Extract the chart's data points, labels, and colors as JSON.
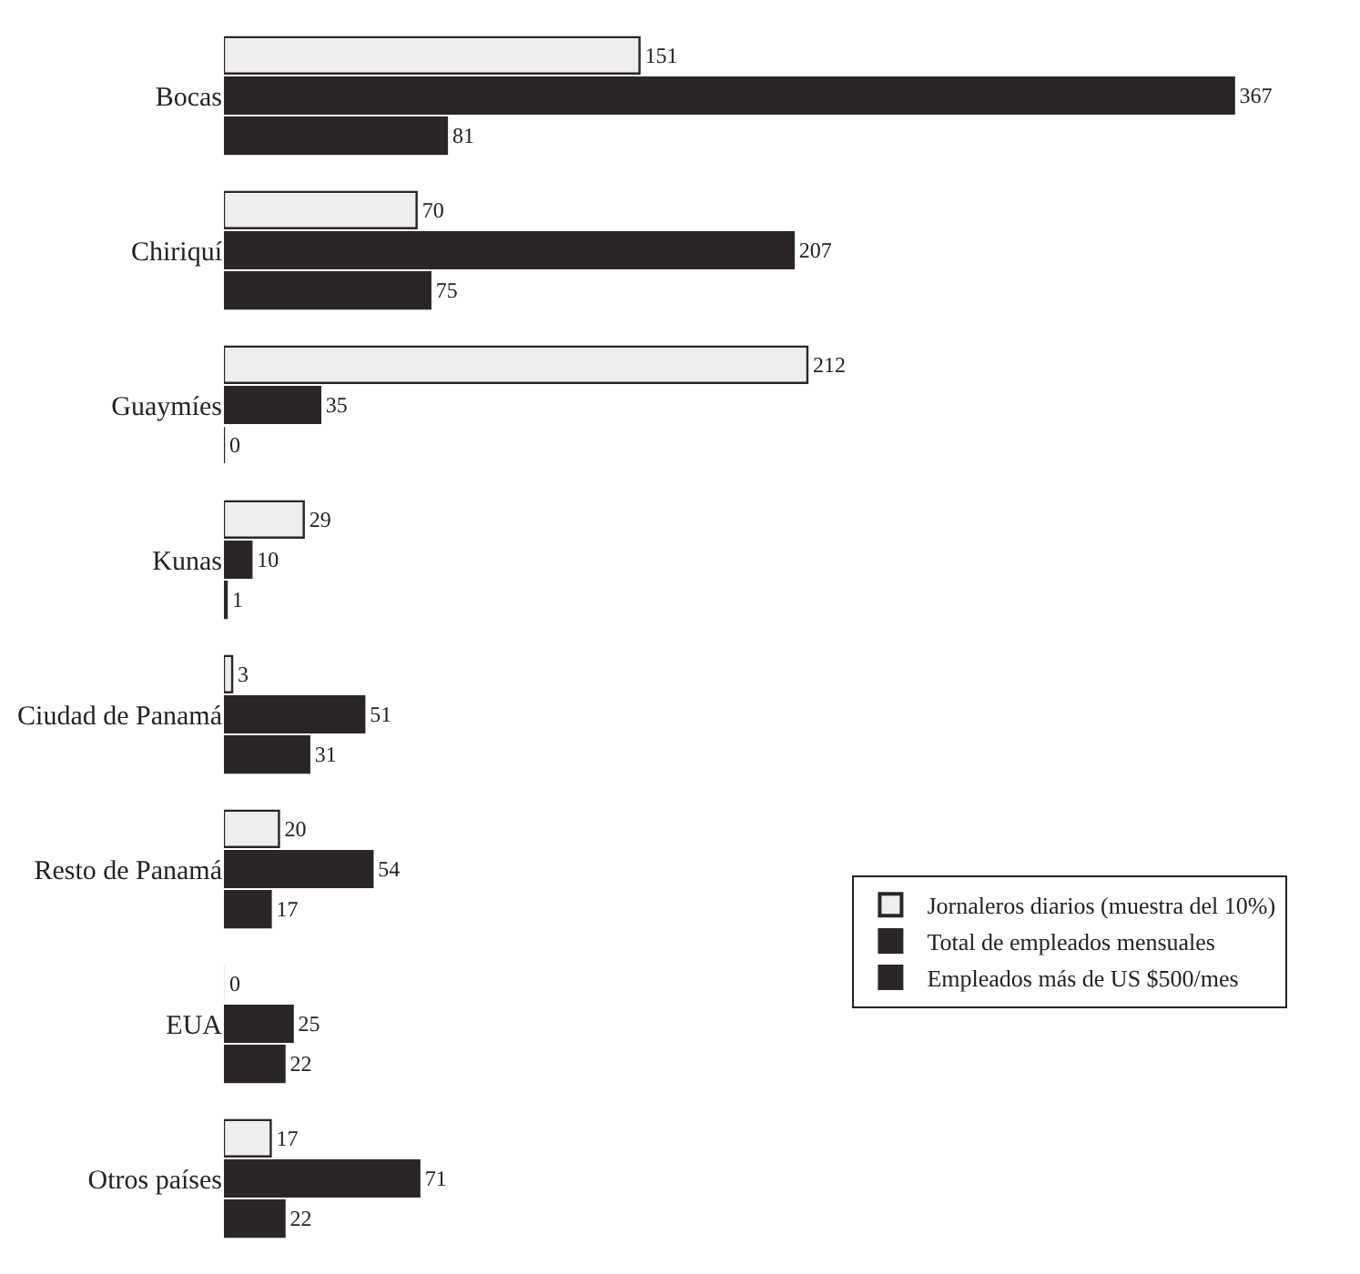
{
  "chart_data": {
    "type": "bar",
    "orientation": "horizontal",
    "categories": [
      "Bocas",
      "Chiriquí",
      "Guaymíes",
      "Kunas",
      "Ciudad de Panamá",
      "Resto de Panamá",
      "EUA",
      "Otros países"
    ],
    "series": [
      {
        "name": "Jornaleros diarios (muestra del 10%)",
        "color": "#eeeeee",
        "values": [
          151,
          70,
          212,
          29,
          3,
          20,
          0,
          17
        ]
      },
      {
        "name": "Total de empleados mensuales",
        "color": "#2b2626",
        "values": [
          367,
          207,
          35,
          10,
          51,
          54,
          25,
          71
        ]
      },
      {
        "name": "Empleados más de US $500/mes",
        "color": "#2b2626",
        "values": [
          81,
          75,
          0,
          1,
          31,
          17,
          22,
          22
        ]
      }
    ],
    "data_labels": true,
    "legend": "bottom right",
    "tick_labels": "y"
  }
}
